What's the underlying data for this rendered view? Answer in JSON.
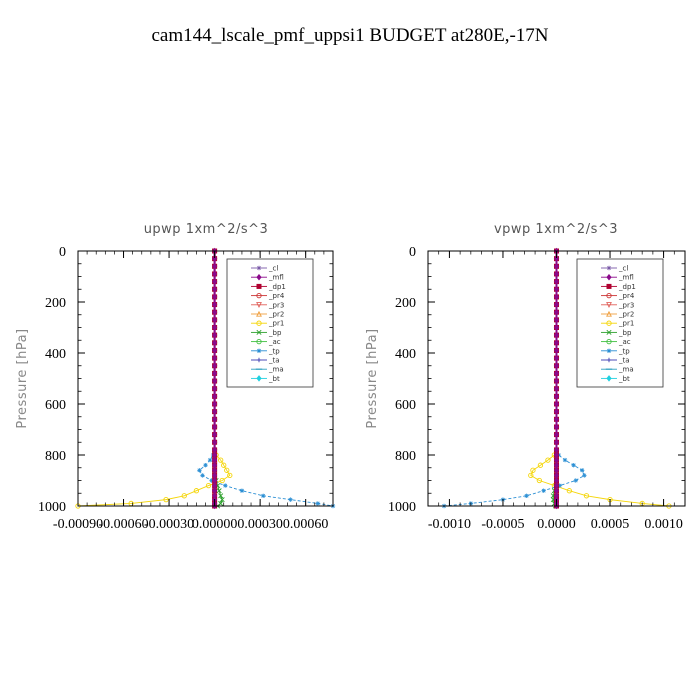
{
  "figure_title": "cam144_lscale_pmf_uppsi1  BUDGET at280E,-17N",
  "chart_data": [
    {
      "type": "line",
      "title": "upwp   1xm^2/s^3",
      "xlabel": "",
      "ylabel": "Pressure  [hPa]",
      "xlim": [
        -0.0009,
        0.00078
      ],
      "ylim": [
        1000,
        0
      ],
      "yticks": [
        0,
        200,
        400,
        600,
        800,
        1000
      ],
      "xticks": [
        -0.0009,
        -0.0006,
        -0.0003,
        0.0,
        0.0003,
        0.0006
      ],
      "xtick_labels": [
        "-0.00090",
        "-0.00060",
        "-0.00030",
        "0.00000",
        "0.00030",
        "0.00060"
      ],
      "grid": false,
      "legend_position": "top-right",
      "legend": [
        "_cl",
        "_mfl",
        "_dp1",
        "_pr4",
        "_pr3",
        "_pr2",
        "_pr1",
        "_bp",
        "_ac",
        "_tp",
        "_ta",
        "_ma",
        "_bt"
      ],
      "pressure_levels": [
        0,
        30,
        60,
        90,
        120,
        150,
        180,
        210,
        240,
        270,
        300,
        330,
        360,
        390,
        420,
        450,
        480,
        510,
        540,
        570,
        600,
        630,
        660,
        690,
        720,
        750,
        780,
        800,
        820,
        840,
        860,
        880,
        900,
        920,
        940,
        960,
        975,
        990,
        1000
      ],
      "series": [
        {
          "name": "_pr1",
          "color": "#f5d60a",
          "marker": "circle",
          "x": [
            0,
            0,
            0,
            0,
            0,
            0,
            0,
            0,
            0,
            0,
            0,
            0,
            0,
            0,
            0,
            0,
            0,
            0,
            0,
            0,
            0,
            0,
            0,
            0,
            0,
            0,
            0,
            1e-05,
            4e-05,
            6e-05,
            8e-05,
            0.0001,
            5e-05,
            -4e-05,
            -0.00012,
            -0.0002,
            -0.00032,
            -0.00055,
            -0.0009
          ]
        },
        {
          "name": "_tp",
          "color": "#2b8fd4",
          "marker": "star",
          "x": [
            0,
            0,
            0,
            0,
            0,
            0,
            0,
            0,
            0,
            0,
            0,
            0,
            0,
            0,
            0,
            0,
            0,
            0,
            0,
            0,
            0,
            0,
            0,
            0,
            0,
            0,
            0,
            -1e-05,
            -3e-05,
            -6e-05,
            -0.0001,
            -8e-05,
            -2e-05,
            7e-05,
            0.00018,
            0.00032,
            0.0005,
            0.00068,
            0.00078
          ]
        },
        {
          "name": "_bp",
          "color": "#2ca02c",
          "marker": "x",
          "x": [
            0,
            0,
            0,
            0,
            0,
            0,
            0,
            0,
            0,
            0,
            0,
            0,
            0,
            0,
            0,
            0,
            0,
            0,
            0,
            0,
            0,
            0,
            0,
            0,
            0,
            0,
            0,
            0,
            0,
            0,
            0,
            0,
            1e-05,
            2e-05,
            3e-05,
            4e-05,
            5e-05,
            4e-05,
            2e-05
          ]
        },
        {
          "name": "_mfl",
          "color": "#8b0a8b",
          "marker": "diamond",
          "x": [
            0,
            0,
            0,
            0,
            0,
            0,
            0,
            0,
            0,
            0,
            0,
            0,
            0,
            0,
            0,
            0,
            0,
            0,
            0,
            0,
            0,
            0,
            0,
            0,
            0,
            0,
            0,
            0,
            0,
            0,
            0,
            0,
            0,
            0,
            0,
            0,
            0,
            0,
            0
          ]
        },
        {
          "name": "_dp1",
          "color": "#b00030",
          "marker": "square",
          "x": [
            0,
            0,
            0,
            0,
            0,
            0,
            0,
            0,
            0,
            0,
            0,
            0,
            0,
            0,
            0,
            0,
            0,
            0,
            0,
            0,
            0,
            0,
            0,
            0,
            0,
            0,
            0,
            0,
            0,
            0,
            0,
            0,
            0,
            0,
            0,
            0,
            0,
            0,
            0
          ]
        }
      ]
    },
    {
      "type": "line",
      "title": "vpwp   1xm^2/s^3",
      "xlabel": "",
      "ylabel": "Pressure  [hPa]",
      "xlim": [
        -0.0012,
        0.0012
      ],
      "ylim": [
        1000,
        0
      ],
      "yticks": [
        0,
        200,
        400,
        600,
        800,
        1000
      ],
      "xticks": [
        -0.001,
        -0.0005,
        0.0,
        0.0005,
        0.001
      ],
      "xtick_labels": [
        "-0.0010",
        "-0.0005",
        "0.0000",
        "0.0005",
        "0.0010"
      ],
      "grid": false,
      "legend_position": "top-right",
      "legend": [
        "_cl",
        "_mfl",
        "_dp1",
        "_pr4",
        "_pr3",
        "_pr2",
        "_pr1",
        "_bp",
        "_ac",
        "_tp",
        "_ta",
        "_ma",
        "_bt"
      ],
      "pressure_levels": [
        0,
        30,
        60,
        90,
        120,
        150,
        180,
        210,
        240,
        270,
        300,
        330,
        360,
        390,
        420,
        450,
        480,
        510,
        540,
        570,
        600,
        630,
        660,
        690,
        720,
        750,
        780,
        800,
        820,
        840,
        860,
        880,
        900,
        920,
        940,
        960,
        975,
        990,
        1000
      ],
      "series": [
        {
          "name": "_pr1",
          "color": "#f5d60a",
          "marker": "circle",
          "x": [
            0,
            0,
            0,
            0,
            0,
            0,
            0,
            0,
            0,
            0,
            0,
            0,
            0,
            0,
            0,
            0,
            0,
            0,
            0,
            0,
            0,
            0,
            0,
            0,
            0,
            0,
            0,
            -2e-05,
            -8e-05,
            -0.00015,
            -0.00022,
            -0.00024,
            -0.00016,
            -2e-05,
            0.00012,
            0.00028,
            0.0005,
            0.0008,
            0.00105
          ]
        },
        {
          "name": "_tp",
          "color": "#2b8fd4",
          "marker": "star",
          "x": [
            0,
            0,
            0,
            0,
            0,
            0,
            0,
            0,
            0,
            0,
            0,
            0,
            0,
            0,
            0,
            0,
            0,
            0,
            0,
            0,
            0,
            0,
            0,
            0,
            0,
            0,
            0,
            2e-05,
            8e-05,
            0.00016,
            0.00024,
            0.00026,
            0.00018,
            3e-05,
            -0.00012,
            -0.00028,
            -0.0005,
            -0.0008,
            -0.00105
          ]
        },
        {
          "name": "_bp",
          "color": "#2ca02c",
          "marker": "x",
          "x": [
            0,
            0,
            0,
            0,
            0,
            0,
            0,
            0,
            0,
            0,
            0,
            0,
            0,
            0,
            0,
            0,
            0,
            0,
            0,
            0,
            0,
            0,
            0,
            0,
            0,
            0,
            0,
            0,
            0,
            0,
            0,
            0,
            0,
            -1e-05,
            -2e-05,
            -3e-05,
            -3e-05,
            -2e-05,
            -1e-05
          ]
        },
        {
          "name": "_mfl",
          "color": "#8b0a8b",
          "marker": "diamond",
          "x": [
            0,
            0,
            0,
            0,
            0,
            0,
            0,
            0,
            0,
            0,
            0,
            0,
            0,
            0,
            0,
            0,
            0,
            0,
            0,
            0,
            0,
            0,
            0,
            0,
            0,
            0,
            0,
            0,
            0,
            0,
            0,
            0,
            0,
            0,
            0,
            0,
            0,
            0,
            0
          ]
        },
        {
          "name": "_dp1",
          "color": "#b00030",
          "marker": "square",
          "x": [
            0,
            0,
            0,
            0,
            0,
            0,
            0,
            0,
            0,
            0,
            0,
            0,
            0,
            0,
            0,
            0,
            0,
            0,
            0,
            0,
            0,
            0,
            0,
            0,
            0,
            0,
            0,
            0,
            0,
            0,
            0,
            0,
            0,
            0,
            0,
            0,
            0,
            0,
            0
          ]
        }
      ]
    }
  ],
  "legend_styles": {
    "_cl": {
      "color": "#7a5aa8",
      "marker": "star"
    },
    "_mfl": {
      "color": "#8b0a8b",
      "marker": "diamond"
    },
    "_dp1": {
      "color": "#b00030",
      "marker": "square"
    },
    "_pr4": {
      "color": "#cc3333",
      "marker": "circle"
    },
    "_pr3": {
      "color": "#e0605a",
      "marker": "tri-down"
    },
    "_pr2": {
      "color": "#f0a040",
      "marker": "tri-up"
    },
    "_pr1": {
      "color": "#f5d60a",
      "marker": "circle"
    },
    "_bp": {
      "color": "#2ca02c",
      "marker": "x"
    },
    "_ac": {
      "color": "#3fbf3f",
      "marker": "circle"
    },
    "_tp": {
      "color": "#2b8fd4",
      "marker": "star"
    },
    "_ta": {
      "color": "#3a3ab0",
      "marker": "plus"
    },
    "_ma": {
      "color": "#30a0c0",
      "marker": "dash"
    },
    "_bt": {
      "color": "#20d0e0",
      "marker": "diamond"
    }
  }
}
